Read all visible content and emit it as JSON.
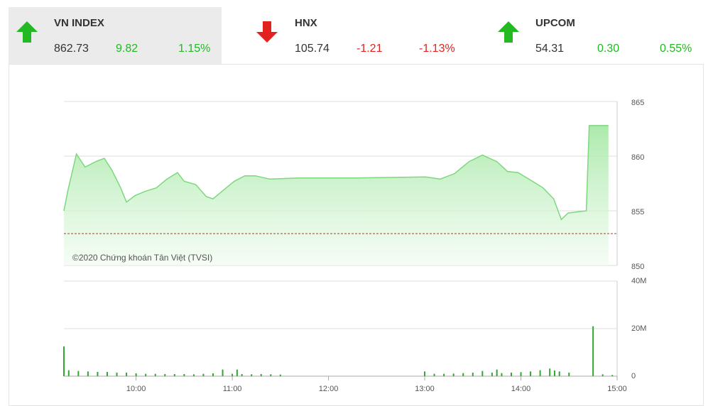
{
  "indices": [
    {
      "name": "VN INDEX",
      "value": "862.73",
      "change": "9.82",
      "percent": "1.15%",
      "direction": "up",
      "active": true
    },
    {
      "name": "HNX",
      "value": "105.74",
      "change": "-1.21",
      "percent": "-1.13%",
      "direction": "down",
      "active": false
    },
    {
      "name": "UPCOM",
      "value": "54.31",
      "change": "0.30",
      "percent": "0.55%",
      "direction": "up",
      "active": false
    }
  ],
  "colors": {
    "up": "#22b922",
    "down": "#e3221f"
  },
  "chart_data": [
    {
      "type": "area",
      "annotation": "©2020 Chứng khoán Tân Việt (TVSI)",
      "x": [
        9.25,
        9.29,
        9.38,
        9.47,
        9.58,
        9.67,
        9.75,
        9.84,
        9.9,
        9.99,
        10.1,
        10.21,
        10.32,
        10.43,
        10.5,
        10.62,
        10.73,
        10.8,
        10.91,
        11.02,
        11.13,
        11.24,
        11.39,
        11.69,
        12.28,
        13.01,
        13.16,
        13.31,
        13.46,
        13.6,
        13.75,
        13.86,
        13.97,
        14.12,
        14.23,
        14.34,
        14.42,
        14.49,
        14.68,
        14.71,
        14.91
      ],
      "values": [
        855.0,
        856.8,
        860.2,
        859.0,
        859.5,
        859.8,
        858.7,
        857.1,
        855.8,
        856.4,
        856.8,
        857.1,
        857.9,
        858.5,
        857.7,
        857.4,
        856.3,
        856.1,
        856.9,
        857.7,
        858.2,
        858.2,
        857.9,
        858.0,
        858.0,
        858.1,
        857.9,
        858.4,
        859.5,
        860.1,
        859.5,
        858.6,
        858.5,
        857.7,
        857.1,
        856.1,
        854.2,
        854.8,
        855.0,
        862.8,
        862.8
      ],
      "reference_line": 852.91,
      "reference_color": "#c0392b",
      "color": "#7dd87d",
      "xlim": [
        9.25,
        15
      ],
      "ylim": [
        850,
        865
      ],
      "yticks": [
        850,
        855,
        860,
        865
      ],
      "grid": true
    },
    {
      "type": "bar",
      "x": [
        9.25,
        9.3,
        9.4,
        9.5,
        9.6,
        9.7,
        9.8,
        9.9,
        10.0,
        10.1,
        10.2,
        10.3,
        10.4,
        10.5,
        10.6,
        10.7,
        10.8,
        10.9,
        11.0,
        11.05,
        11.1,
        11.2,
        11.3,
        11.4,
        11.5,
        13.0,
        13.1,
        13.2,
        13.3,
        13.4,
        13.5,
        13.6,
        13.7,
        13.75,
        13.8,
        13.9,
        14.0,
        14.1,
        14.2,
        14.3,
        14.35,
        14.4,
        14.5,
        14.75,
        14.85,
        14.95
      ],
      "values": [
        12500000,
        2500000,
        2200000,
        2000000,
        1800000,
        1800000,
        1500000,
        1500000,
        1200000,
        1000000,
        1000000,
        900000,
        900000,
        900000,
        800000,
        1000000,
        1200000,
        2800000,
        1000000,
        2800000,
        900000,
        800000,
        900000,
        800000,
        700000,
        2000000,
        1000000,
        1000000,
        1100000,
        1300000,
        1500000,
        2200000,
        1500000,
        2800000,
        1300000,
        1500000,
        1700000,
        2000000,
        2500000,
        3200000,
        2400000,
        2000000,
        1500000,
        21000000,
        800000,
        500000
      ],
      "color": "#2fa82f",
      "xlim": [
        9.25,
        15
      ],
      "ylim": [
        0,
        40000000
      ],
      "yticks": [
        0,
        {
          "value": 20000000,
          "label": "20M"
        },
        {
          "value": 40000000,
          "label": "40M"
        }
      ],
      "xticks": [
        {
          "value": 10,
          "label": "10:00"
        },
        {
          "value": 11,
          "label": "11:00"
        },
        {
          "value": 12,
          "label": "12:00"
        },
        {
          "value": 13,
          "label": "13:00"
        },
        {
          "value": 14,
          "label": "14:00"
        },
        {
          "value": 15,
          "label": "15:00"
        }
      ],
      "grid": true
    }
  ]
}
